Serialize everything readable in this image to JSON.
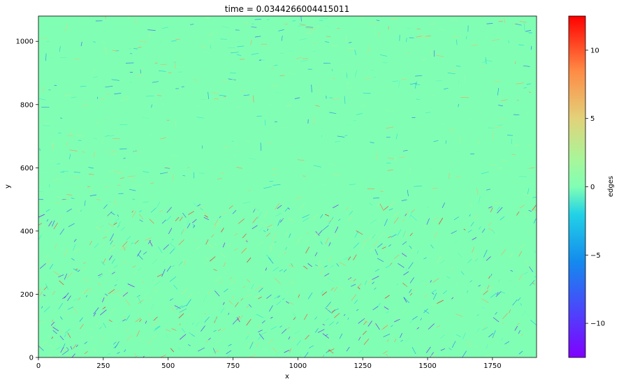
{
  "chart_data": {
    "type": "heatmap",
    "title": "time = 0.0344266004415011",
    "xlabel": "x",
    "ylabel": "y",
    "xlim": [
      0,
      1920
    ],
    "ylim": [
      0,
      1080
    ],
    "xticks": [
      0,
      250,
      500,
      750,
      1000,
      1250,
      1500,
      1750
    ],
    "yticks": [
      0,
      200,
      400,
      600,
      800,
      1000
    ],
    "colorbar": {
      "label": "edges",
      "colormap": "rainbow",
      "range": [
        -12.5,
        12.5
      ],
      "ticks": [
        -10,
        -5,
        0,
        5,
        10
      ],
      "tick_labels": [
        "−10",
        "−5",
        "0",
        "5",
        "10"
      ]
    },
    "grid": false,
    "background_value": 0,
    "description_colors": {
      "zero": "#80ffb4",
      "negative_extreme": "#8000ff",
      "positive_extreme": "#ff0000"
    }
  }
}
